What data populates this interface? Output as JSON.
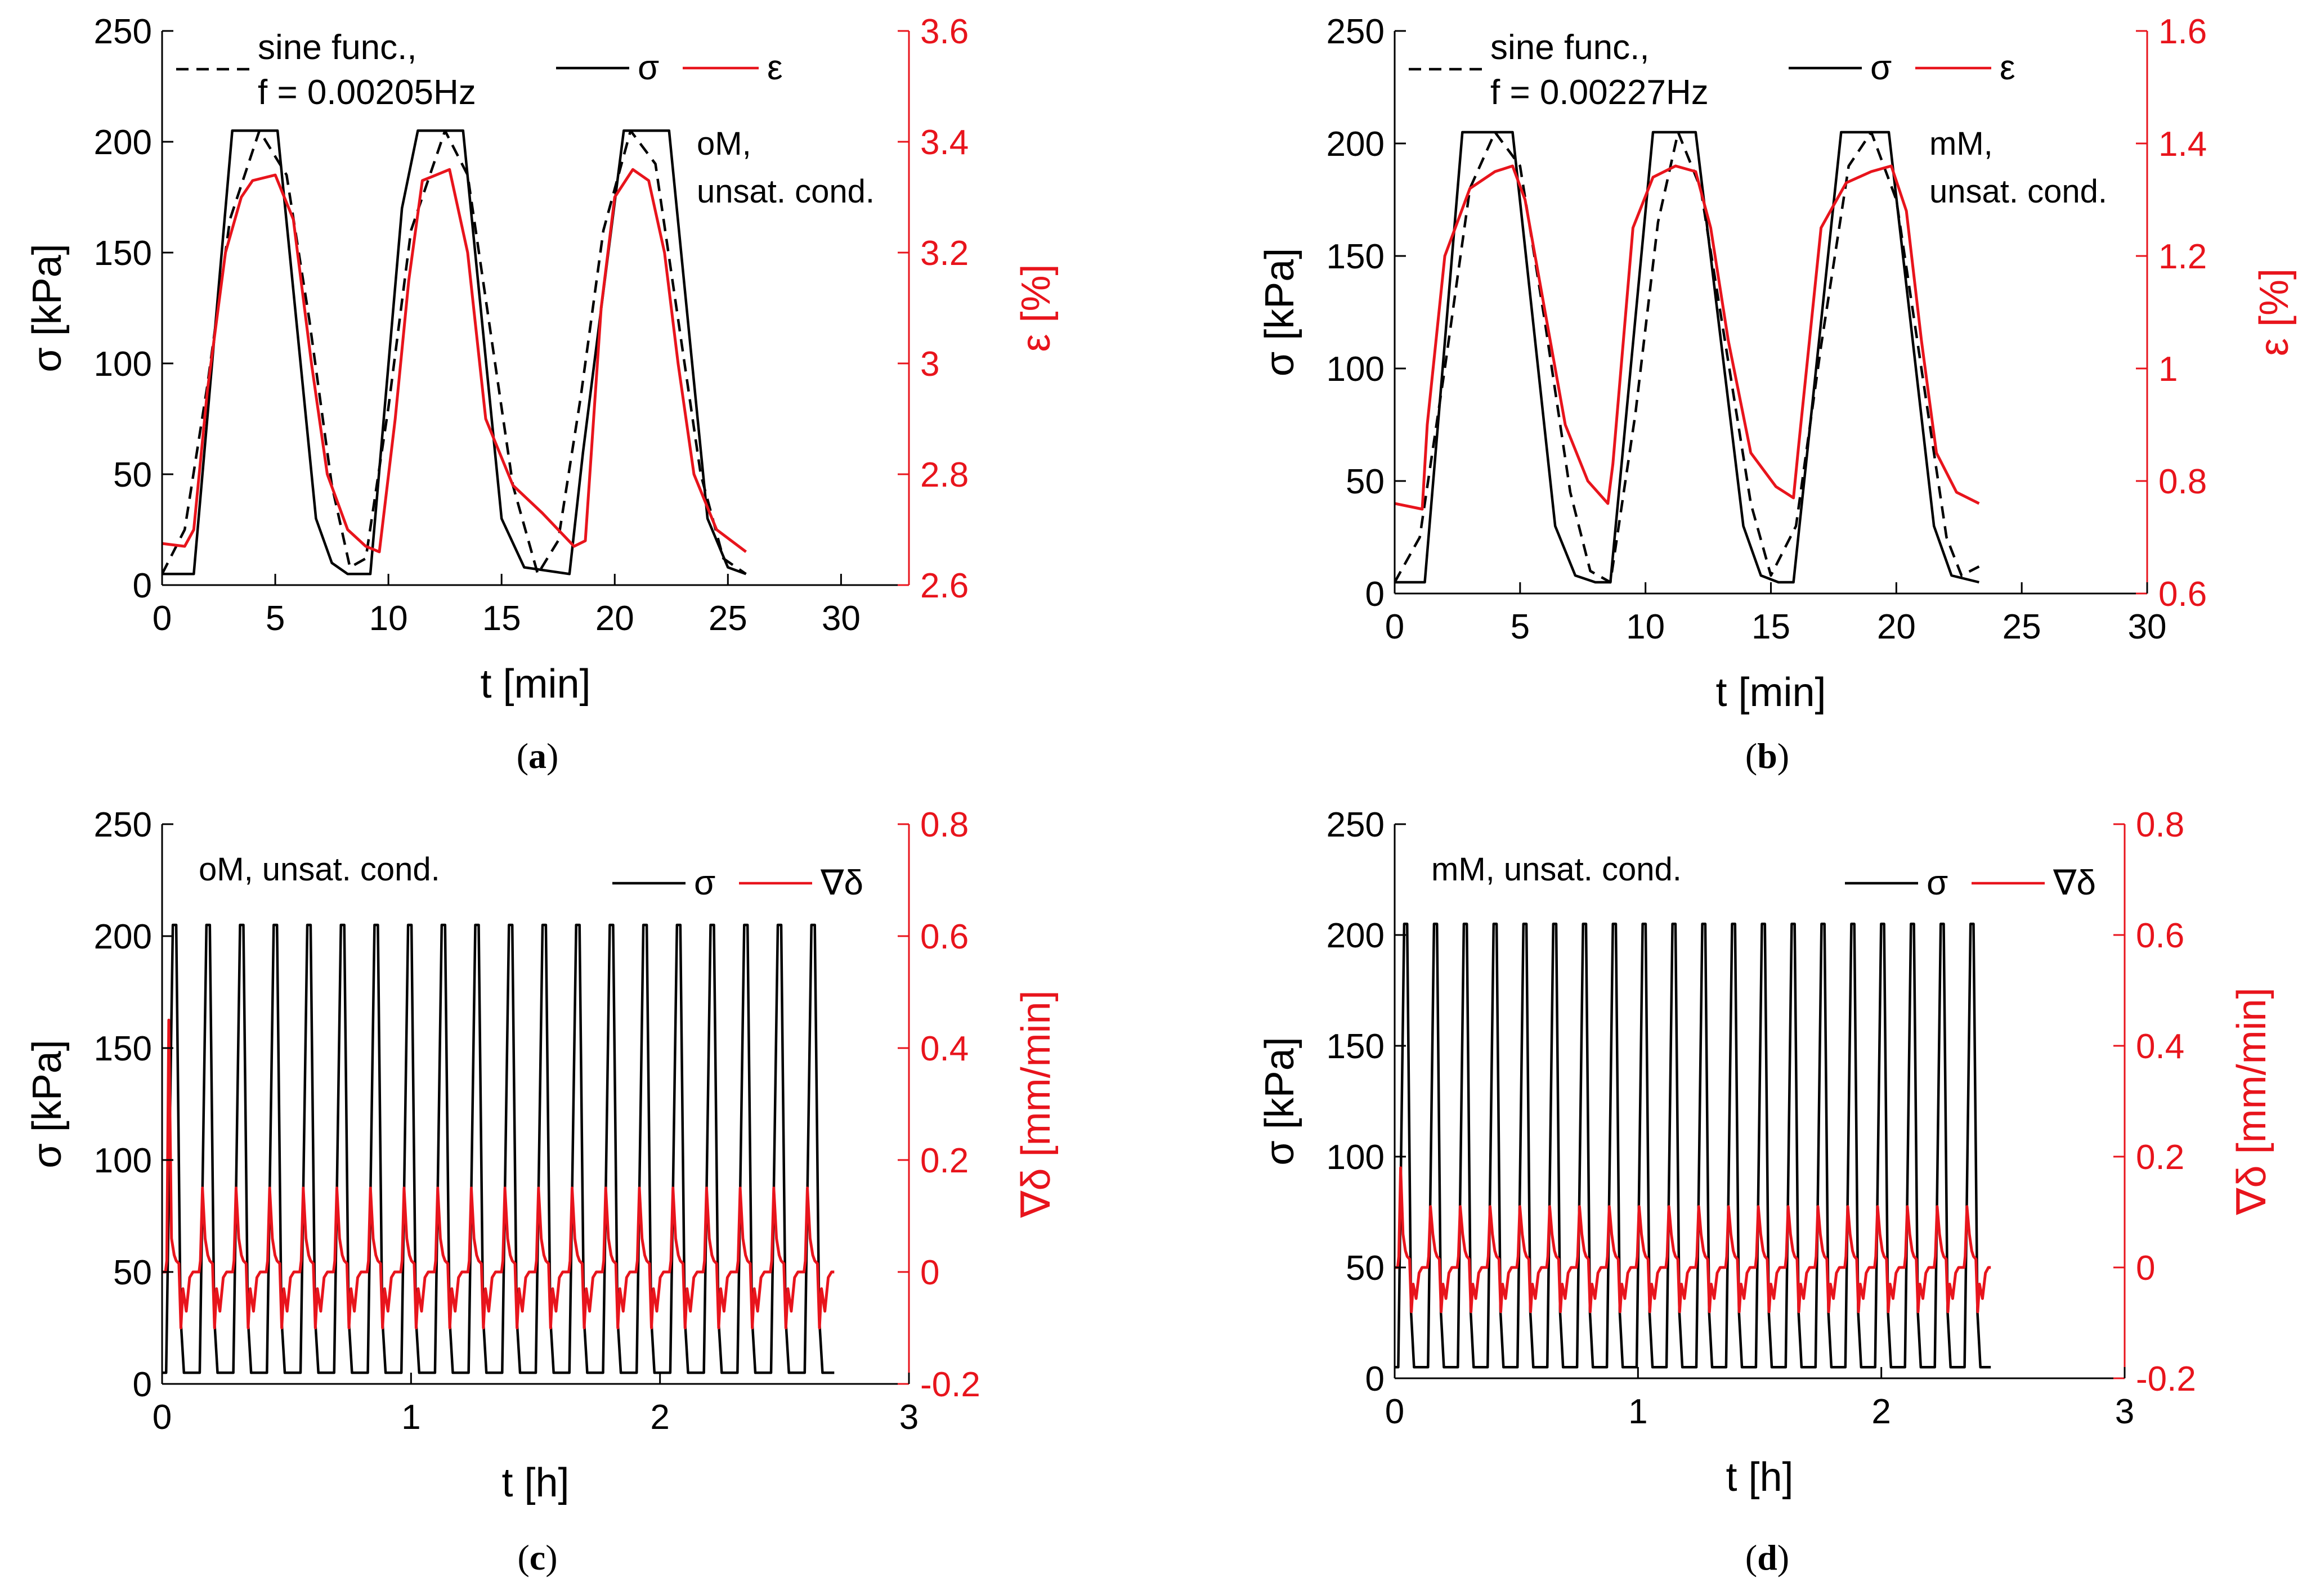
{
  "colors": {
    "sigma": "#000000",
    "right": "#e8141c",
    "sine": "#000000",
    "axis": "#000000"
  },
  "chart_data": [
    {
      "panel": "a",
      "panel_label": "a",
      "type": "line",
      "xlabel": "t [min]",
      "ylabel": "σ [kPa]",
      "ylabel_right": "ε [%]",
      "xlim": [
        0,
        33
      ],
      "xticks": [
        0,
        5,
        10,
        15,
        20,
        25,
        30
      ],
      "ylim": [
        0,
        250
      ],
      "yticks": [
        0,
        50,
        100,
        150,
        200,
        250
      ],
      "ylim_right": [
        2.6,
        3.6
      ],
      "yticks_right": [
        2.6,
        2.8,
        3,
        3.2,
        3.4,
        3.6
      ],
      "right_tick_labels": [
        "2.6",
        "2.8",
        "3",
        "3.2",
        "3.4",
        "3.6"
      ],
      "legend": {
        "sine_line1": "sine func.,",
        "sine_line2": "f = 0.00205Hz",
        "sigma": "σ",
        "right": "ε"
      },
      "annotation": [
        "oM,",
        "unsat. cond."
      ],
      "series": [
        {
          "name": "σ",
          "axis": "left",
          "style": "solid",
          "color": "#000000",
          "x": [
            0,
            1.4,
            3.1,
            5.1,
            6.8,
            7.5,
            8.2,
            9.2,
            10.6,
            11.3,
            13.3,
            15.0,
            16.0,
            18.0,
            18.6,
            20.4,
            22.4,
            24.1,
            25.0,
            25.8
          ],
          "y": [
            5,
            5,
            205,
            205,
            30,
            10,
            5,
            5,
            170,
            205,
            205,
            30,
            8,
            5,
            60,
            205,
            205,
            30,
            8,
            5
          ]
        },
        {
          "name": "sine func., f = 0.00205Hz",
          "axis": "left",
          "style": "dashed",
          "color": "#000000",
          "x": [
            0,
            1.0,
            2.0,
            3.0,
            4.3,
            5.5,
            6.5,
            7.5,
            8.3,
            9.0,
            10.0,
            11.0,
            12.5,
            13.5,
            14.5,
            15.5,
            16.6,
            17.5,
            18.5,
            19.5,
            20.7,
            21.8,
            22.8,
            23.8,
            24.8,
            25.8
          ],
          "y": [
            5,
            25,
            90,
            165,
            205,
            185,
            120,
            45,
            8,
            12,
            80,
            160,
            205,
            185,
            115,
            45,
            5,
            20,
            85,
            160,
            205,
            190,
            120,
            50,
            12,
            5
          ]
        },
        {
          "name": "ε",
          "axis": "right",
          "style": "solid",
          "color": "#e8141c",
          "x": [
            0,
            1.0,
            1.4,
            2.0,
            2.8,
            3.5,
            4.0,
            5.0,
            5.8,
            6.6,
            7.3,
            8.2,
            9.0,
            9.6,
            10.3,
            10.9,
            11.5,
            12.7,
            13.5,
            14.3,
            15.5,
            16.8,
            17.5,
            18.2,
            18.7,
            19.4,
            20.0,
            20.8,
            21.5,
            22.2,
            22.8,
            23.5,
            24.5,
            25.8
          ],
          "y": [
            2.675,
            2.67,
            2.7,
            2.95,
            3.2,
            3.3,
            3.33,
            3.34,
            3.26,
            3.0,
            2.8,
            2.7,
            2.67,
            2.66,
            2.9,
            3.15,
            3.33,
            3.35,
            3.2,
            2.9,
            2.78,
            2.73,
            2.7,
            2.67,
            2.68,
            3.1,
            3.3,
            3.35,
            3.33,
            3.2,
            3.0,
            2.8,
            2.7,
            2.66
          ]
        }
      ]
    },
    {
      "panel": "b",
      "panel_label": "b",
      "type": "line",
      "xlabel": "t [min]",
      "ylabel": "σ [kPa]",
      "ylabel_right": "ε [%]",
      "xlim": [
        0,
        30
      ],
      "xticks": [
        0,
        5,
        10,
        15,
        20,
        25,
        30
      ],
      "ylim": [
        0,
        250
      ],
      "yticks": [
        0,
        50,
        100,
        150,
        200,
        250
      ],
      "ylim_right": [
        0.6,
        1.6
      ],
      "yticks_right": [
        0.6,
        0.8,
        1.0,
        1.2,
        1.4,
        1.6
      ],
      "right_tick_labels": [
        "0.6",
        "0.8",
        "1",
        "1.2",
        "1.4",
        "1.6"
      ],
      "legend": {
        "sine_line1": "sine func.,",
        "sine_line2": "f = 0.00227Hz",
        "sigma": "σ",
        "right": "ε"
      },
      "annotation": [
        "mM,",
        "unsat. cond."
      ],
      "series": [
        {
          "name": "σ",
          "axis": "left",
          "style": "solid",
          "color": "#000000",
          "x": [
            0,
            1.2,
            2.7,
            4.7,
            6.4,
            7.2,
            8.0,
            8.6,
            10.3,
            12.0,
            13.9,
            14.6,
            15.3,
            15.9,
            17.8,
            19.7,
            21.5,
            22.2,
            23.3
          ],
          "y": [
            5,
            5,
            205,
            205,
            30,
            8,
            5,
            5,
            205,
            205,
            30,
            8,
            5,
            5,
            205,
            205,
            30,
            8,
            5
          ]
        },
        {
          "name": "sine func., f = 0.00227Hz",
          "axis": "left",
          "style": "dashed",
          "color": "#000000",
          "x": [
            0,
            1.0,
            2.0,
            3.0,
            4.0,
            5.0,
            6.0,
            7.0,
            7.8,
            8.6,
            9.6,
            10.5,
            11.3,
            12.2,
            13.2,
            14.2,
            15.0,
            16.0,
            17.0,
            18.1,
            19.0,
            20.0,
            21.0,
            22.0,
            22.6,
            23.3
          ],
          "y": [
            5,
            25,
            100,
            180,
            205,
            190,
            120,
            45,
            10,
            5,
            80,
            165,
            205,
            180,
            110,
            40,
            8,
            30,
            110,
            190,
            205,
            175,
            100,
            25,
            8,
            12
          ]
        },
        {
          "name": "ε",
          "axis": "right",
          "style": "solid",
          "color": "#e8141c",
          "x": [
            0,
            1.1,
            1.3,
            2.0,
            3.0,
            4.0,
            4.7,
            5.2,
            6.0,
            6.8,
            7.7,
            8.5,
            8.7,
            9.5,
            10.3,
            11.2,
            12.0,
            12.6,
            13.3,
            14.2,
            15.2,
            15.9,
            16.1,
            17.0,
            18.0,
            19.0,
            19.8,
            20.4,
            21.0,
            21.6,
            22.4,
            23.3
          ],
          "y": [
            0.76,
            0.75,
            0.9,
            1.2,
            1.32,
            1.35,
            1.36,
            1.3,
            1.1,
            0.9,
            0.8,
            0.76,
            0.83,
            1.25,
            1.34,
            1.36,
            1.35,
            1.25,
            1.05,
            0.85,
            0.79,
            0.77,
            0.86,
            1.25,
            1.33,
            1.35,
            1.36,
            1.28,
            1.05,
            0.85,
            0.78,
            0.76
          ]
        }
      ]
    },
    {
      "panel": "c",
      "panel_label": "c",
      "type": "line",
      "xlabel": "t [h]",
      "ylabel": "σ [kPa]",
      "ylabel_right": "∇δ [mm/min]",
      "xlim": [
        0,
        3
      ],
      "xticks": [
        0,
        1,
        2,
        3
      ],
      "ylim": [
        0,
        250
      ],
      "yticks": [
        0,
        50,
        100,
        150,
        200,
        250
      ],
      "ylim_right": [
        -0.2,
        0.8
      ],
      "yticks_right": [
        -0.2,
        0,
        0.2,
        0.4,
        0.6,
        0.8
      ],
      "right_tick_labels": [
        "-0.2",
        "0",
        "0.2",
        "0.4",
        "0.6",
        "0.8"
      ],
      "legend": {
        "sigma": "σ",
        "right": "∇δ"
      },
      "annotation": [
        "oM, unsat. cond."
      ],
      "cycles": 20,
      "t_end_h": 2.7,
      "sigma_min_kPa": 5,
      "sigma_max_kPa": 205,
      "gradient_rest": 0.0,
      "gradient_cycle_peak": 0.15,
      "gradient_cycle_trough": -0.1,
      "gradient_initial_peak": 0.45
    },
    {
      "panel": "d",
      "panel_label": "d",
      "type": "line",
      "xlabel": "t [h]",
      "ylabel": "σ [kPa]",
      "ylabel_right": "∇δ [mm/min]",
      "xlim": [
        0,
        3
      ],
      "xticks": [
        0,
        1,
        2,
        3
      ],
      "ylim": [
        0,
        250
      ],
      "yticks": [
        0,
        50,
        100,
        150,
        200,
        250
      ],
      "ylim_right": [
        -0.2,
        0.8
      ],
      "yticks_right": [
        -0.2,
        0,
        0.2,
        0.4,
        0.6,
        0.8
      ],
      "right_tick_labels": [
        "-0.2",
        "0",
        "0.2",
        "0.4",
        "0.6",
        "0.8"
      ],
      "legend": {
        "sigma": "σ",
        "right": "∇δ"
      },
      "annotation": [
        "mM, unsat. cond."
      ],
      "cycles": 20,
      "t_end_h": 2.45,
      "sigma_min_kPa": 5,
      "sigma_max_kPa": 205,
      "gradient_rest": 0.0,
      "gradient_cycle_peak": 0.11,
      "gradient_cycle_trough": -0.08,
      "gradient_initial_peak": 0.18
    }
  ]
}
